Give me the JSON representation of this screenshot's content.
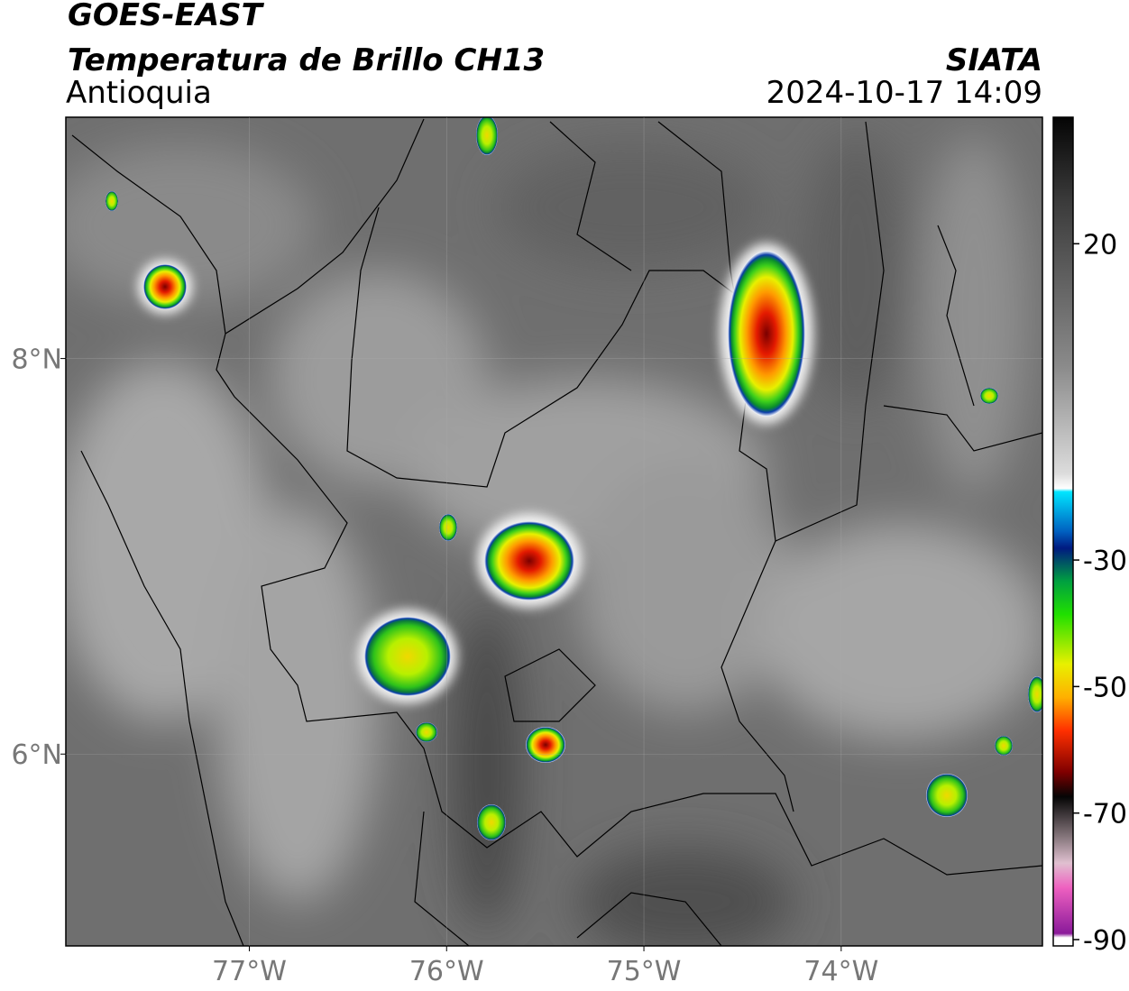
{
  "header": {
    "satellite": "GOES-EAST",
    "product": "Temperatura de Brillo CH13",
    "region": "Antioquia",
    "agency": "SIATA",
    "datetime": "2024-10-17 14:09"
  },
  "map": {
    "lonlim": [
      -77.93,
      -72.98
    ],
    "latlim": [
      5.03,
      9.22
    ],
    "lonticks": [
      {
        "value": -77,
        "label": "77°W"
      },
      {
        "value": -76,
        "label": "76°W"
      },
      {
        "value": -75,
        "label": "75°W"
      },
      {
        "value": -74,
        "label": "74°W"
      }
    ],
    "latticks": [
      {
        "value": 8,
        "label": "8°N"
      },
      {
        "value": 6,
        "label": "6°N"
      }
    ]
  },
  "colorbar": {
    "range": [
      -91,
      40
    ],
    "ticks": [
      20,
      -30,
      -50,
      -70,
      -90
    ]
  }
}
